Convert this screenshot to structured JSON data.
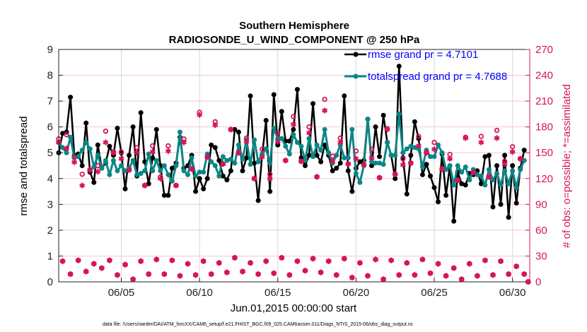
{
  "chart_data": {
    "type": "line",
    "title": [
      "Southern Hemisphere",
      "RADIOSONDE_U_WIND_COMPONENT @ 250 hPa"
    ],
    "xlabel": "Jun.01,2015 00:00:00 start",
    "ylabel": "rmse and totalspread",
    "ylabel_right": "# of obs: o=possible; *=assimilated",
    "footer": "data file: /Users/raeder/DAI/ATM_forcXX/CAM6_setup/f.e21.FHIST_BGC.f09_025.CAM6assim.011/Diags_NTrS_2015-06/obs_diag_output.nc",
    "xlim_days": [
      1,
      31.1
    ],
    "ylim": [
      0,
      9
    ],
    "ylim_right": [
      0,
      270
    ],
    "x_ticks": [
      {
        "day": 5,
        "label": "06/05"
      },
      {
        "day": 10,
        "label": "06/10"
      },
      {
        "day": 15,
        "label": "06/15"
      },
      {
        "day": 20,
        "label": "06/20"
      },
      {
        "day": 25,
        "label": "06/25"
      },
      {
        "day": 30,
        "label": "06/30"
      }
    ],
    "y_ticks": [
      "0",
      "1",
      "2",
      "3",
      "4",
      "5",
      "6",
      "7",
      "8",
      "9"
    ],
    "y_ticks_right": [
      "0",
      "30",
      "60",
      "90",
      "120",
      "150",
      "180",
      "210",
      "240",
      "270"
    ],
    "grid": true,
    "legend": {
      "placement": "top-right",
      "entries": [
        "rmse grand pr = 4.7101",
        "totalspread grand pr = 4.7688"
      ]
    },
    "colors": {
      "rmse": "#000000",
      "totalspread": "#0b8686",
      "obs": "#d6145a",
      "legend_text": "#0000ff"
    },
    "series": [
      {
        "name": "rmse",
        "x_start": 1,
        "x_step": 0.25,
        "values": [
          5.0,
          5.75,
          5.8,
          7.15,
          4.9,
          4.95,
          4.5,
          6.15,
          4.25,
          3.85,
          5.3,
          4.4,
          4.6,
          5.25,
          4.9,
          5.95,
          5.0,
          3.6,
          4.9,
          6.0,
          4.1,
          6.55,
          4.65,
          3.8,
          4.8,
          5.9,
          4.5,
          3.35,
          3.35,
          4.4,
          4.6,
          5.6,
          4.4,
          4.5,
          4.9,
          3.5,
          4.0,
          3.6,
          4.0,
          5.3,
          5.2,
          4.7,
          4.1,
          3.95,
          4.3,
          5.9,
          5.8,
          4.3,
          4.8,
          7.2,
          4.6,
          3.15,
          4.9,
          6.25,
          3.5,
          7.25,
          5.3,
          6.6,
          5.45,
          5.45,
          5.9,
          7.45,
          4.8,
          4.5,
          4.9,
          6.9,
          4.9,
          4.65,
          5.3,
          4.9,
          4.3,
          4.4,
          4.6,
          7.2,
          4.3,
          3.5,
          4.4,
          4.65,
          4.7,
          6.3,
          4.5,
          6.0,
          4.85,
          6.45,
          5.4,
          4.9,
          4.0,
          8.35,
          4.8,
          3.4,
          4.9,
          6.2,
          5.55,
          4.15,
          4.55,
          4.1,
          3.65,
          3.1,
          4.95,
          3.35,
          4.5,
          2.35,
          4.25,
          3.8,
          3.75,
          4.2,
          4.15,
          4.3,
          3.8,
          4.85,
          4.9,
          2.9,
          4.5,
          3.0,
          4.9,
          2.5,
          4.5,
          3.05,
          4.4,
          5.1
        ]
      },
      {
        "name": "totalspread",
        "x_start": 1,
        "x_step": 0.25,
        "values": [
          5.4,
          5.2,
          5.0,
          5.6,
          4.8,
          4.85,
          5.1,
          5.4,
          5.15,
          4.45,
          4.9,
          4.4,
          4.7,
          4.15,
          4.7,
          4.3,
          4.5,
          4.3,
          4.4,
          4.7,
          4.15,
          4.2,
          4.3,
          4.95,
          4.3,
          4.7,
          4.3,
          4.5,
          4.15,
          3.9,
          4.5,
          5.8,
          4.3,
          4.15,
          4.8,
          4.1,
          4.25,
          4.25,
          4.95,
          4.65,
          4.5,
          4.1,
          4.85,
          4.7,
          4.75,
          4.6,
          5.3,
          4.75,
          5.5,
          4.55,
          5.5,
          4.65,
          4.95,
          5.15,
          4.6,
          5.95,
          5.55,
          5.55,
          5.25,
          4.95,
          5.7,
          5.4,
          5.25,
          4.7,
          5.55,
          4.85,
          5.3,
          5.1,
          5.9,
          5.0,
          4.6,
          4.9,
          5.3,
          4.8,
          4.8,
          5.9,
          4.2,
          3.85,
          4.5,
          6.3,
          4.65,
          4.6,
          4.6,
          4.55,
          5.4,
          4.9,
          4.9,
          6.5,
          5.0,
          5.15,
          5.25,
          5.2,
          5.15,
          4.45,
          5.1,
          4.85,
          4.85,
          5.3,
          5.0,
          4.35,
          4.5,
          3.75,
          4.5,
          4.25,
          4.45,
          3.95,
          4.35,
          4.15,
          4.1,
          3.75,
          4.35,
          3.95,
          4.2,
          3.75,
          4.3,
          3.8,
          4.3,
          3.65,
          4.35,
          4.7
        ]
      },
      {
        "name": "obs possible (00Z/12Z)",
        "axis": "right",
        "x_start": 1,
        "x_step": 0.5,
        "values": [
          166,
          171,
          145,
          125,
          130,
          135,
          175,
          151,
          151,
          130,
          156,
          112,
          158,
          122,
          158,
          112,
          166,
          131,
          197,
          145,
          186,
          137,
          177,
          150,
          167,
          120,
          154,
          125,
          173,
          141,
          192,
          140,
          180,
          122,
          212,
          146,
          167,
          137,
          152,
          136,
          154,
          121,
          178,
          125,
          143,
          138,
          169,
          150,
          162,
          131,
          148,
          118,
          168,
          127,
          169,
          122,
          176,
          140,
          157,
          143,
          0
        ]
      },
      {
        "name": "obs assimilated (00Z/12Z)",
        "axis": "right",
        "x_start": 1,
        "x_step": 0.5,
        "values": [
          162,
          155,
          139,
          112,
          130,
          128,
          162,
          150,
          143,
          130,
          150,
          112,
          151,
          120,
          152,
          112,
          162,
          131,
          194,
          145,
          182,
          137,
          177,
          150,
          163,
          120,
          145,
          120,
          163,
          141,
          183,
          140,
          173,
          122,
          199,
          140,
          162,
          137,
          143,
          136,
          144,
          121,
          177,
          125,
          136,
          138,
          158,
          150,
          154,
          131,
          143,
          118,
          167,
          127,
          162,
          122,
          167,
          137,
          151,
          143,
          0
        ]
      },
      {
        "name": "obs possible/assimilated (06Z/18Z)",
        "axis": "right",
        "x_start": 1.25,
        "x_step": 0.5,
        "values": [
          24,
          9,
          25,
          12,
          21,
          16,
          25,
          8,
          20,
          3,
          24,
          9,
          26,
          9,
          25,
          7,
          21,
          8,
          24,
          9,
          22,
          11,
          28,
          12,
          22,
          9,
          24,
          10,
          28,
          8,
          24,
          13,
          27,
          11,
          24,
          8,
          27,
          5,
          22,
          7,
          26,
          3,
          25,
          8,
          22,
          8,
          26,
          10,
          21,
          7,
          16,
          3,
          21,
          7,
          25,
          8,
          24,
          9,
          18,
          9
        ]
      }
    ]
  }
}
